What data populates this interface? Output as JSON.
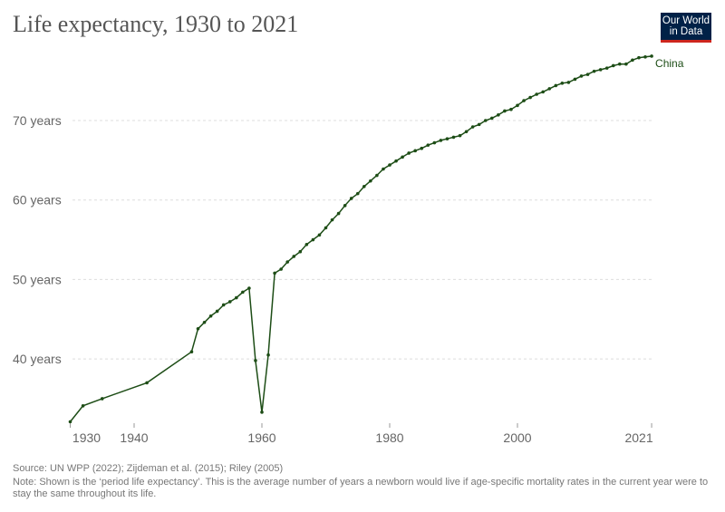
{
  "title": "Life expectancy, 1930 to 2021",
  "logo": {
    "line1": "Our World",
    "line2": "in Data"
  },
  "footer": {
    "source": "Source: UN WPP (2022); Zijdeman et al. (2015); Riley (2005)",
    "note": "Note: Shown is the ‘period life expectancy’. This is the average number of years a newborn would live if age-specific mortality rates in the current year were to stay the same throughout its life."
  },
  "chart_data": {
    "type": "line",
    "title": "Life expectancy, 1930 to 2021",
    "xlim": [
      1930,
      2021
    ],
    "ylim": [
      32,
      78.1
    ],
    "x_ticks": [
      {
        "value": 1930,
        "label": "1930"
      },
      {
        "value": 1940,
        "label": "1940"
      },
      {
        "value": 1960,
        "label": "1960"
      },
      {
        "value": 1980,
        "label": "1980"
      },
      {
        "value": 2000,
        "label": "2000"
      },
      {
        "value": 2021,
        "label": "2021"
      }
    ],
    "y_ticks": [
      {
        "value": 40,
        "label": "40 years"
      },
      {
        "value": 50,
        "label": "50 years"
      },
      {
        "value": 60,
        "label": "60 years"
      },
      {
        "value": 70,
        "label": "70 years"
      }
    ],
    "grid": "horizontal dashed",
    "color": "#1d4d16",
    "series": [
      {
        "name": "China",
        "x": [
          1930,
          1932,
          1935,
          1942,
          1949,
          1950,
          1951,
          1952,
          1953,
          1954,
          1955,
          1956,
          1957,
          1958,
          1959,
          1960,
          1961,
          1962,
          1963,
          1964,
          1965,
          1966,
          1967,
          1968,
          1969,
          1970,
          1971,
          1972,
          1973,
          1974,
          1975,
          1976,
          1977,
          1978,
          1979,
          1980,
          1981,
          1982,
          1983,
          1984,
          1985,
          1986,
          1987,
          1988,
          1989,
          1990,
          1991,
          1992,
          1993,
          1994,
          1995,
          1996,
          1997,
          1998,
          1999,
          2000,
          2001,
          2002,
          2003,
          2004,
          2005,
          2006,
          2007,
          2008,
          2009,
          2010,
          2011,
          2012,
          2013,
          2014,
          2015,
          2016,
          2017,
          2018,
          2019,
          2020,
          2021
        ],
        "values": [
          32.1,
          34.1,
          35.0,
          37.0,
          40.9,
          43.8,
          44.6,
          45.4,
          46.0,
          46.8,
          47.2,
          47.7,
          48.4,
          48.9,
          39.8,
          33.3,
          40.5,
          50.8,
          51.3,
          52.2,
          52.9,
          53.5,
          54.4,
          55.0,
          55.6,
          56.5,
          57.5,
          58.3,
          59.3,
          60.2,
          60.8,
          61.7,
          62.4,
          63.1,
          63.9,
          64.4,
          64.9,
          65.4,
          65.9,
          66.2,
          66.5,
          66.9,
          67.2,
          67.5,
          67.7,
          67.9,
          68.1,
          68.6,
          69.2,
          69.5,
          70.0,
          70.3,
          70.7,
          71.2,
          71.4,
          71.9,
          72.5,
          72.9,
          73.3,
          73.6,
          74.0,
          74.4,
          74.7,
          74.8,
          75.2,
          75.6,
          75.8,
          76.2,
          76.4,
          76.6,
          76.9,
          77.1,
          77.1,
          77.6,
          77.9,
          78.0,
          78.1
        ]
      }
    ]
  }
}
